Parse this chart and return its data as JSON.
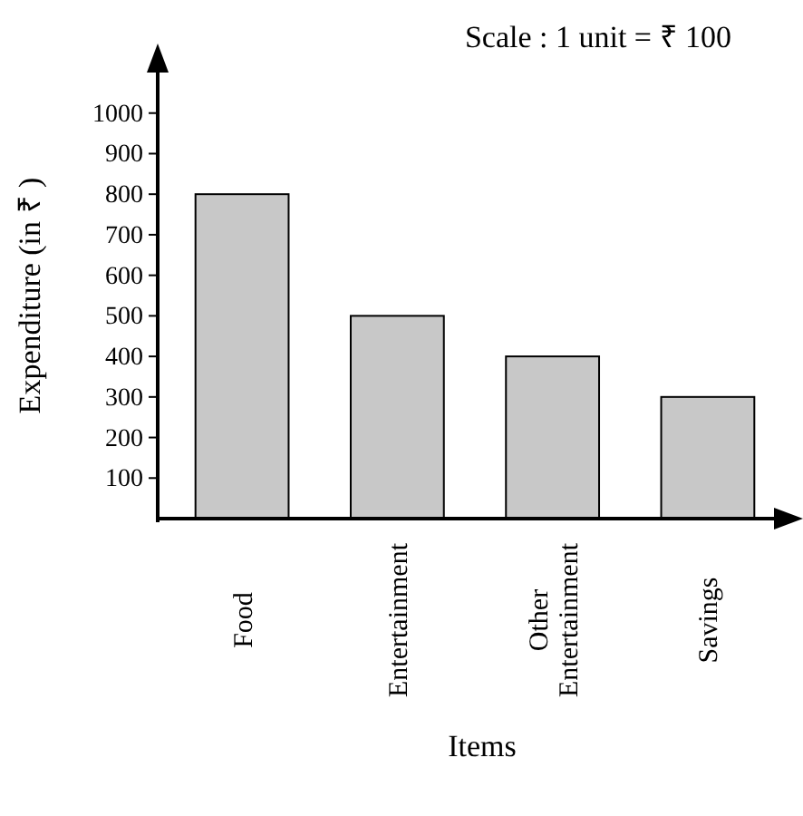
{
  "chart_data": {
    "type": "bar",
    "xlabel": "Items",
    "ylabel": "Expenditure (in ₹ )",
    "categories": [
      "Food",
      "Entertainment",
      "Other Entertainment",
      "Savings"
    ],
    "values": [
      800,
      500,
      400,
      300
    ],
    "color": "#c8c8c8",
    "ylim": [
      0,
      1100
    ],
    "yticks": [
      100,
      200,
      300,
      400,
      500,
      600,
      700,
      800,
      900,
      1000
    ],
    "grid": false,
    "annotations": [
      "Scale : 1 unit = ₹ 100"
    ]
  }
}
